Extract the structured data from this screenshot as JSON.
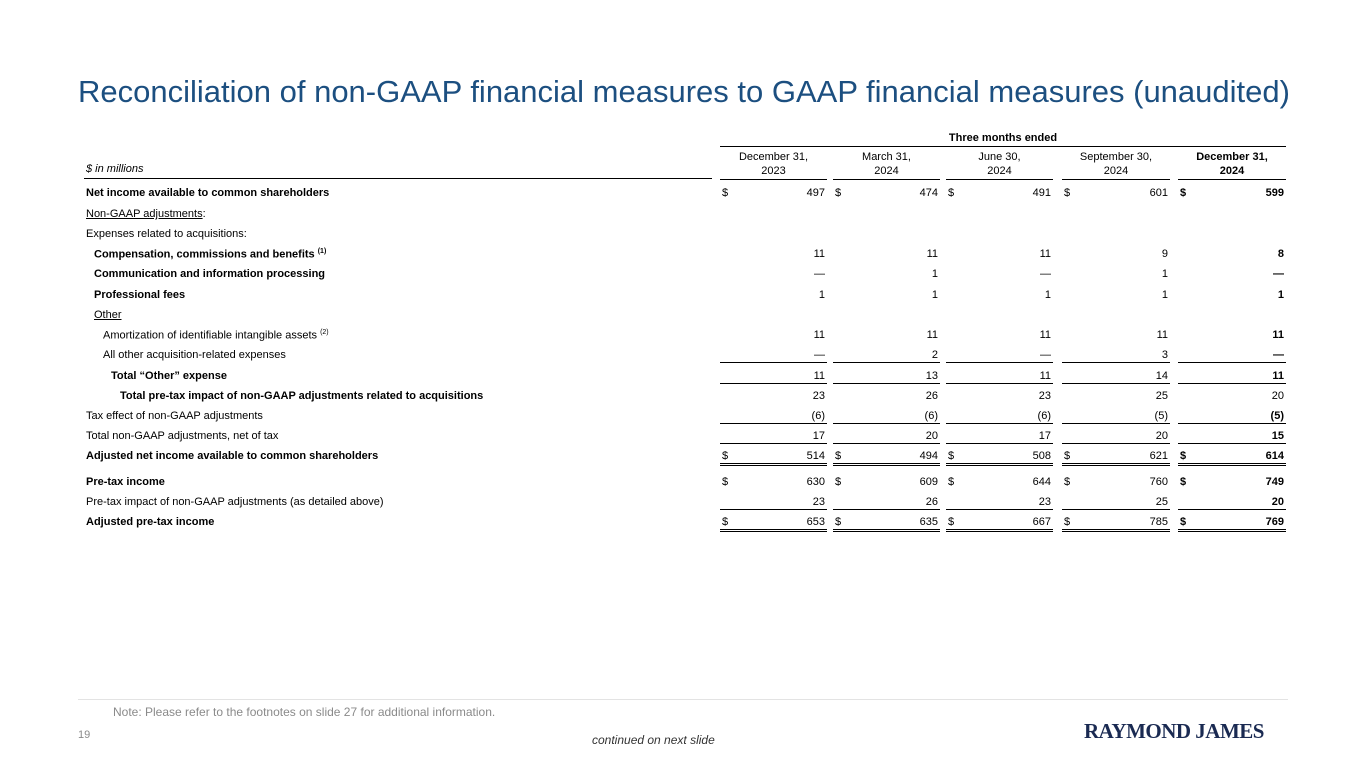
{
  "title": "Reconciliation of non-GAAP financial measures to GAAP financial measures (unaudited)",
  "units": "$ in millions",
  "group_header": "Three months ended",
  "columns": [
    {
      "line1": "December 31,",
      "line2": "2023",
      "bold": false
    },
    {
      "line1": "March 31,",
      "line2": "2024",
      "bold": false
    },
    {
      "line1": "June 30,",
      "line2": "2024",
      "bold": false
    },
    {
      "line1": "September 30,",
      "line2": "2024",
      "bold": false
    },
    {
      "line1": "December 31,",
      "line2": "2024",
      "bold": true
    }
  ],
  "rows": [
    {
      "label": "Net income available to common shareholders",
      "bold": true,
      "indent": 0,
      "dollar": true,
      "values": [
        "497",
        "474",
        "491",
        "601",
        "599"
      ]
    },
    {
      "label": "Non-GAAP adjustments",
      "suffix": ":",
      "underline": true,
      "indent": 0,
      "values": []
    },
    {
      "label": "Expenses related to acquisitions:",
      "indent": 0,
      "values": []
    },
    {
      "label": "Compensation, commissions and benefits",
      "sup": "(1)",
      "bold": true,
      "indent": 1,
      "values": [
        "11",
        "11",
        "11",
        "9",
        "8"
      ]
    },
    {
      "label": "Communication and information processing",
      "bold": true,
      "indent": 1,
      "values": [
        "—",
        "1",
        "—",
        "1",
        "—"
      ]
    },
    {
      "label": "Professional fees",
      "bold": true,
      "indent": 1,
      "values": [
        "1",
        "1",
        "1",
        "1",
        "1"
      ]
    },
    {
      "label": "Other",
      "underline": true,
      "indent": 1,
      "values": []
    },
    {
      "label": "Amortization of identifiable intangible assets",
      "sup": "(2)",
      "indent": 2,
      "values": [
        "11",
        "11",
        "11",
        "11",
        "11"
      ]
    },
    {
      "label": "All other acquisition-related expenses",
      "indent": 2,
      "line": "single",
      "values": [
        "—",
        "2",
        "—",
        "3",
        "—"
      ]
    },
    {
      "label": "Total “Other” expense",
      "bold": true,
      "indent": 3,
      "line": "single",
      "values": [
        "11",
        "13",
        "11",
        "14",
        "11"
      ]
    },
    {
      "label": "Total pre-tax impact of non-GAAP adjustments related to acquisitions",
      "bold": true,
      "indent": 4,
      "lastplain": true,
      "values": [
        "23",
        "26",
        "23",
        "25",
        "20"
      ]
    },
    {
      "label": "Tax effect of non-GAAP adjustments",
      "indent": 0,
      "line": "single",
      "values": [
        "(6)",
        "(6)",
        "(6)",
        "(5)",
        "(5)"
      ]
    },
    {
      "label": "Total non-GAAP adjustments, net of tax",
      "indent": 0,
      "line": "single",
      "values": [
        "17",
        "20",
        "17",
        "20",
        "15"
      ]
    },
    {
      "label": "Adjusted net income available to common shareholders",
      "bold": true,
      "indent": 0,
      "dollar": true,
      "line": "double",
      "values": [
        "514",
        "494",
        "508",
        "621",
        "614"
      ]
    },
    {
      "label": "Pre-tax income",
      "bold": true,
      "indent": 0,
      "dollar": true,
      "values": [
        "630",
        "609",
        "644",
        "760",
        "749"
      ]
    },
    {
      "label": "Pre-tax impact of non-GAAP adjustments (as detailed above)",
      "indent": 0,
      "line": "single",
      "values": [
        "23",
        "26",
        "23",
        "25",
        "20"
      ]
    },
    {
      "label": "Adjusted pre-tax income",
      "bold": true,
      "indent": 0,
      "dollar": true,
      "line": "double",
      "values": [
        "653",
        "635",
        "667",
        "785",
        "769"
      ]
    }
  ],
  "note": "Note: Please refer to the footnotes on slide 27 for additional information.",
  "page_number": "19",
  "continued": "continued on next slide",
  "logo": "RAYMOND JAMES",
  "colors": {
    "title": "#1c4f80",
    "logo": "#1a2a52"
  }
}
